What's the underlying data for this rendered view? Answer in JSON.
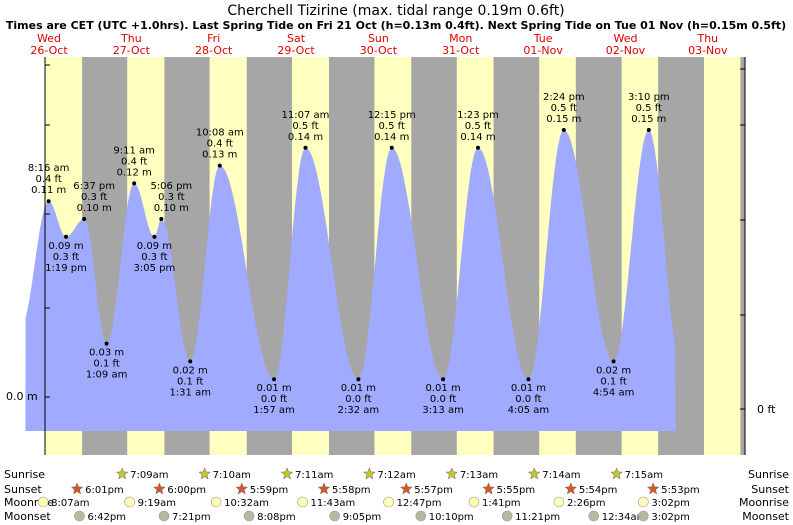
{
  "chart_data": {
    "type": "area",
    "title": "Cherchell Tizirine (max. tidal range 0.19m 0.6ft)",
    "subtitle": "Times are CET (UTC +1.0hrs). Last Spring Tide on Fri 21 Oct (h=0.13m 0.4ft). Next Spring Tide on Tue 01 Nov (h=0.15m 0.5ft)",
    "day_labels": [
      {
        "dow": "Wed",
        "date": "26-Oct"
      },
      {
        "dow": "Thu",
        "date": "27-Oct"
      },
      {
        "dow": "Fri",
        "date": "28-Oct"
      },
      {
        "dow": "Sat",
        "date": "29-Oct"
      },
      {
        "dow": "Sun",
        "date": "30-Oct"
      },
      {
        "dow": "Mon",
        "date": "31-Oct"
      },
      {
        "dow": "Tue",
        "date": "01-Nov"
      },
      {
        "dow": "Wed",
        "date": "02-Nov"
      },
      {
        "dow": "Thu",
        "date": "03-Nov"
      }
    ],
    "y_axis_left_label": "0.0 m",
    "y_axis_right_label": "0 ft",
    "tides": [
      {
        "day": 0,
        "time": "8:16 am",
        "ft": "0.4 ft",
        "m": "0.11 m",
        "h": 0.11,
        "type": "high"
      },
      {
        "day": 0,
        "time": "1:19 pm",
        "ft": "0.3 ft",
        "m": "0.09 m",
        "h": 0.09,
        "type": "low"
      },
      {
        "day": 0,
        "time": "6:37 pm",
        "ft": "0.3 ft",
        "m": "0.10 m",
        "h": 0.1,
        "type": "high"
      },
      {
        "day": 1,
        "time": "1:09 am",
        "ft": "0.1 ft",
        "m": "0.03 m",
        "h": 0.03,
        "type": "low"
      },
      {
        "day": 1,
        "time": "9:11 am",
        "ft": "0.4 ft",
        "m": "0.12 m",
        "h": 0.12,
        "type": "high"
      },
      {
        "day": 1,
        "time": "3:05 pm",
        "ft": "0.3 ft",
        "m": "0.09 m",
        "h": 0.09,
        "type": "low"
      },
      {
        "day": 1,
        "time": "5:06 pm",
        "ft": "0.3 ft",
        "m": "0.10 m",
        "h": 0.1,
        "type": "high"
      },
      {
        "day": 2,
        "time": "1:31 am",
        "ft": "0.1 ft",
        "m": "0.02 m",
        "h": 0.02,
        "type": "low"
      },
      {
        "day": 2,
        "time": "10:08 am",
        "ft": "0.4 ft",
        "m": "0.13 m",
        "h": 0.13,
        "type": "high"
      },
      {
        "day": 3,
        "time": "1:57 am",
        "ft": "0.0 ft",
        "m": "0.01 m",
        "h": 0.01,
        "type": "low"
      },
      {
        "day": 3,
        "time": "11:07 am",
        "ft": "0.5 ft",
        "m": "0.14 m",
        "h": 0.14,
        "type": "high"
      },
      {
        "day": 4,
        "time": "2:32 am",
        "ft": "0.0 ft",
        "m": "0.01 m",
        "h": 0.01,
        "type": "low"
      },
      {
        "day": 4,
        "time": "12:15 pm",
        "ft": "0.5 ft",
        "m": "0.14 m",
        "h": 0.14,
        "type": "high"
      },
      {
        "day": 5,
        "time": "3:13 am",
        "ft": "0.0 ft",
        "m": "0.01 m",
        "h": 0.01,
        "type": "low"
      },
      {
        "day": 5,
        "time": "1:23 pm",
        "ft": "0.5 ft",
        "m": "0.14 m",
        "h": 0.14,
        "type": "high"
      },
      {
        "day": 6,
        "time": "4:05 am",
        "ft": "0.0 ft",
        "m": "0.01 m",
        "h": 0.01,
        "type": "low"
      },
      {
        "day": 6,
        "time": "2:24 pm",
        "ft": "0.5 ft",
        "m": "0.15 m",
        "h": 0.15,
        "type": "high"
      },
      {
        "day": 7,
        "time": "4:54 am",
        "ft": "0.1 ft",
        "m": "0.02 m",
        "h": 0.02,
        "type": "low"
      },
      {
        "day": 7,
        "time": "3:10 pm",
        "ft": "0.5 ft",
        "m": "0.15 m",
        "h": 0.15,
        "type": "high"
      }
    ],
    "astro_row_labels": [
      "Sunrise",
      "Sunset",
      "Moonrise",
      "Moonset"
    ],
    "sunrise": [
      {
        "day": 1,
        "time": "7:09am"
      },
      {
        "day": 2,
        "time": "7:10am"
      },
      {
        "day": 3,
        "time": "7:11am"
      },
      {
        "day": 4,
        "time": "7:12am"
      },
      {
        "day": 5,
        "time": "7:13am"
      },
      {
        "day": 6,
        "time": "7:14am"
      },
      {
        "day": 7,
        "time": "7:15am"
      }
    ],
    "sunset": [
      {
        "day": 0,
        "time": "6:01pm"
      },
      {
        "day": 1,
        "time": "6:00pm"
      },
      {
        "day": 2,
        "time": "5:59pm"
      },
      {
        "day": 3,
        "time": "5:58pm"
      },
      {
        "day": 4,
        "time": "5:57pm"
      },
      {
        "day": 5,
        "time": "5:55pm"
      },
      {
        "day": 6,
        "time": "5:54pm"
      },
      {
        "day": 7,
        "time": "5:53pm"
      }
    ],
    "moonrise": [
      {
        "day": 0,
        "time": "8:07am"
      },
      {
        "day": 1,
        "time": "9:19am"
      },
      {
        "day": 2,
        "time": "10:32am"
      },
      {
        "day": 3,
        "time": "11:43am"
      },
      {
        "day": 4,
        "time": "12:47pm"
      },
      {
        "day": 5,
        "time": "1:41pm"
      },
      {
        "day": 6,
        "time": "2:26pm"
      },
      {
        "day": 7,
        "time": "3:02pm"
      }
    ],
    "moonset": [
      {
        "day": 0,
        "time": "6:42pm"
      },
      {
        "day": 1,
        "time": "7:21pm"
      },
      {
        "day": 2,
        "time": "8:08pm"
      },
      {
        "day": 3,
        "time": "9:05pm"
      },
      {
        "day": 4,
        "time": "10:10pm"
      },
      {
        "day": 5,
        "time": "11:21pm"
      },
      {
        "day": 6,
        "time": "12:34am",
        "next_day": true
      },
      {
        "day": 7,
        "time": "3:02pm"
      }
    ],
    "sun_rise_times_decimal": [
      7.15,
      7.167,
      7.183,
      7.2,
      7.217,
      7.233,
      7.25
    ],
    "sun_set_times_decimal": [
      18.017,
      18.0,
      17.983,
      17.967,
      17.95,
      17.917,
      17.9,
      17.883
    ],
    "data_start_hour": 1.5,
    "data_end_day": 7,
    "data_end_hour": 23,
    "colors": {
      "day": "#ffffc0",
      "night": "#a6a6a6",
      "water": "#a0aaff",
      "title": "#000000",
      "date": "#dd0000",
      "sunrise_star": "#c4c430",
      "sunset_star": "#d8572a",
      "moonrise": "#ffffb8",
      "moonset": "#b8b8a0"
    }
  }
}
